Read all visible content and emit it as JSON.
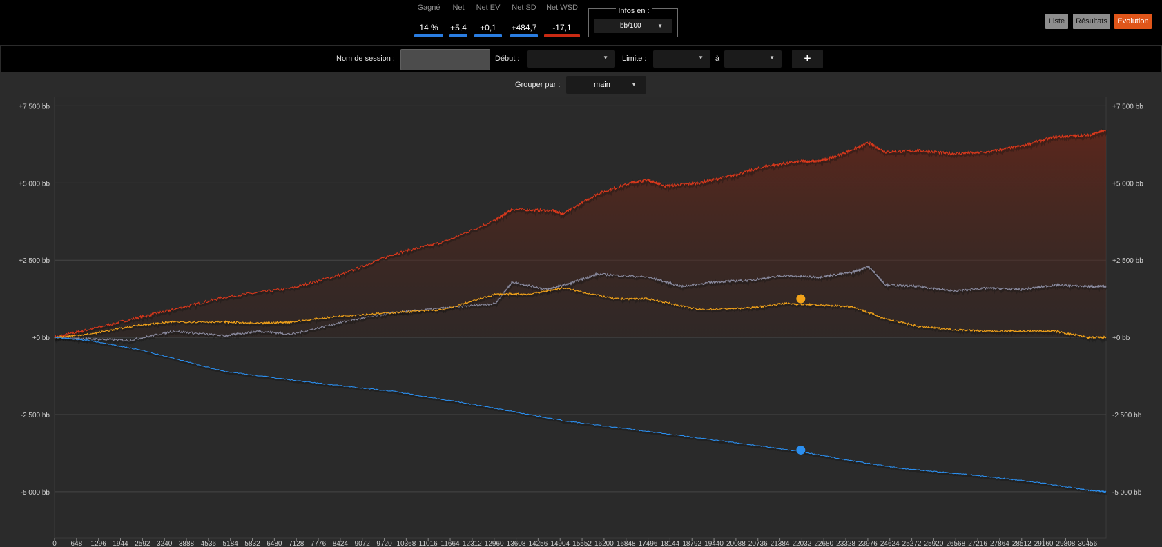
{
  "stats": [
    {
      "label": "Gagné",
      "value": "14 %",
      "color": "#2a7de1"
    },
    {
      "label": "Net",
      "value": "+5,4",
      "color": "#2a7de1"
    },
    {
      "label": "Net EV",
      "value": "+0,1",
      "color": "#2a7de1"
    },
    {
      "label": "Net SD",
      "value": "+484,7",
      "color": "#2a7de1"
    },
    {
      "label": "Net WSD",
      "value": "-17,1",
      "color": "#c92a13"
    }
  ],
  "infos": {
    "label": "Infos en :",
    "value": "bb/100"
  },
  "views": {
    "liste": "Liste",
    "resultats": "Résultats",
    "evolution": "Evolution",
    "active": "Evolution"
  },
  "filters": {
    "session_label": "Nom de session :",
    "session_value": "",
    "debut_label": "Début :",
    "debut_value": "",
    "limite_label": "Limite :",
    "limite_value": "",
    "a_label": "à",
    "a_value": "",
    "add_label": "+"
  },
  "group": {
    "label": "Grouper par :",
    "value": "main"
  },
  "chart_data": {
    "type": "line",
    "y_tick_labels": [
      "+7 500 bb",
      "+5 000 bb",
      "+2 500 bb",
      "+0 bb",
      "-2 500 bb",
      "-5 000 bb"
    ],
    "y_ticks": [
      7500,
      5000,
      2500,
      0,
      -2500,
      -5000
    ],
    "ylim": [
      -6500,
      7800
    ],
    "xlim": [
      0,
      31000
    ],
    "x_ticks": [
      0,
      648,
      1296,
      1944,
      2592,
      3240,
      3888,
      4536,
      5184,
      5832,
      6480,
      7128,
      7776,
      8424,
      9072,
      9720,
      10368,
      11016,
      11664,
      12312,
      12960,
      13608,
      14256,
      14904,
      15552,
      16200,
      16848,
      17496,
      18144,
      18792,
      19440,
      20088,
      20736,
      21384,
      22032,
      22680,
      23328,
      23976,
      24624,
      25272,
      25920,
      26568,
      27216,
      27864,
      28512,
      29160,
      29808,
      30456
    ],
    "grid": true,
    "series": [
      {
        "color": "#d8381c",
        "filled": true,
        "x": [
          0,
          1000,
          2500,
          3500,
          5000,
          7000,
          8500,
          10000,
          11500,
          13000,
          13500,
          14700,
          15000,
          16000,
          17000,
          17500,
          18000,
          19000,
          20000,
          21000,
          22000,
          22500,
          23000,
          24000,
          24500,
          25500,
          26500,
          27500,
          28500,
          29500,
          30456,
          31000
        ],
        "values": [
          0,
          250,
          650,
          900,
          1300,
          1600,
          2050,
          2700,
          3100,
          3800,
          4150,
          4100,
          4000,
          4650,
          5000,
          5100,
          4900,
          5000,
          5250,
          5550,
          5700,
          5700,
          5850,
          6300,
          6000,
          6050,
          5950,
          6000,
          6200,
          6500,
          6550,
          6700
        ]
      },
      {
        "color": "#8a8a9e",
        "x": [
          0,
          1000,
          2200,
          3500,
          5000,
          6000,
          7000,
          8500,
          10000,
          11500,
          13000,
          13500,
          14500,
          15200,
          16000,
          17500,
          18500,
          19500,
          20500,
          21500,
          22500,
          23500,
          24000,
          24500,
          25500,
          26500,
          27500,
          28500,
          29500,
          30456,
          31000
        ],
        "values": [
          0,
          -50,
          -100,
          200,
          50,
          200,
          100,
          500,
          800,
          950,
          1100,
          1800,
          1550,
          1750,
          2050,
          1950,
          1650,
          1800,
          1850,
          2000,
          1950,
          2100,
          2300,
          1700,
          1650,
          1500,
          1600,
          1550,
          1700,
          1650,
          1650
        ]
      },
      {
        "color": "#f2a21a",
        "x": [
          0,
          1000,
          2500,
          3500,
          5000,
          6000,
          7000,
          8500,
          10000,
          11500,
          13000,
          14000,
          15000,
          16500,
          17500,
          19000,
          20500,
          21500,
          22500,
          23500,
          24500,
          25500,
          26500,
          27500,
          28500,
          29500,
          30456,
          31000
        ],
        "values": [
          0,
          100,
          400,
          500,
          500,
          450,
          500,
          700,
          800,
          900,
          1400,
          1400,
          1600,
          1250,
          1250,
          900,
          950,
          1100,
          1050,
          1000,
          600,
          350,
          250,
          200,
          200,
          200,
          0,
          0
        ]
      },
      {
        "color": "#2b8ff0",
        "x": [
          0,
          1000,
          2500,
          5000,
          7500,
          10000,
          12500,
          15000,
          17500,
          20000,
          22000,
          23500,
          25000,
          27000,
          29000,
          30456,
          31000
        ],
        "values": [
          0,
          -100,
          -400,
          -1100,
          -1450,
          -1750,
          -2200,
          -2700,
          -3050,
          -3400,
          -3700,
          -4000,
          -4250,
          -4450,
          -4700,
          -4950,
          -5000
        ]
      }
    ],
    "markers": [
      {
        "x": 22000,
        "y": 1250,
        "color": "#f2a21a"
      },
      {
        "x": 22000,
        "y": -3650,
        "color": "#2b8ff0"
      }
    ]
  }
}
